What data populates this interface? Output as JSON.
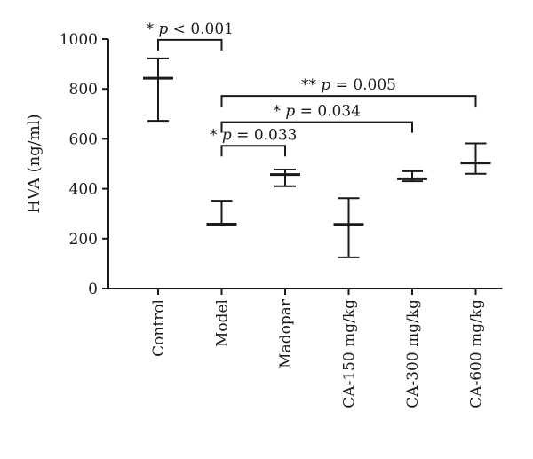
{
  "chart_data": {
    "type": "scatter",
    "ylabel": "HVA (ng/ml)",
    "xlabel": "",
    "title": "",
    "ylim": [
      0,
      1000
    ],
    "yticks": [
      0,
      200,
      400,
      600,
      800,
      1000
    ],
    "grid": false,
    "categories": [
      "Control",
      "Model",
      "Madopar",
      "CA-150 mg/kg",
      "CA-300 mg/kg",
      "CA-600 mg/kg"
    ],
    "series": [
      {
        "values": [
          843,
          258,
          457,
          257,
          440,
          503
        ],
        "error_low": [
          672,
          258,
          410,
          125,
          430,
          460
        ],
        "error_high": [
          922,
          352,
          477,
          362,
          470,
          582
        ]
      }
    ],
    "annotations": [
      {
        "from": 0,
        "to": 1,
        "stars": "*",
        "p_label": "p",
        "p_text": "< 0.001",
        "y": 997
      },
      {
        "from": 1,
        "to": 5,
        "stars": "**",
        "p_label": "p",
        "p_text": "= 0.005",
        "y": 772
      },
      {
        "from": 1,
        "to": 4,
        "stars": "*",
        "p_label": "p",
        "p_text": "= 0.034",
        "y": 667
      },
      {
        "from": 1,
        "to": 2,
        "stars": "*",
        "p_label": "p",
        "p_text": "= 0.033",
        "y": 572
      }
    ]
  }
}
